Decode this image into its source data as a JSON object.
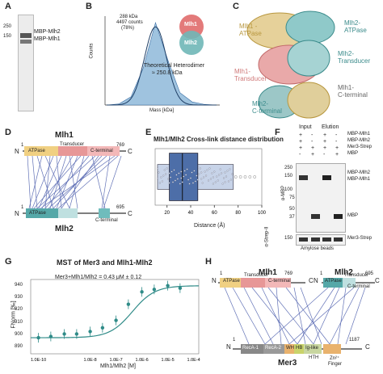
{
  "panels": {
    "a": {
      "letter": "A",
      "marker_250": "250",
      "marker_150": "150",
      "band_label_1": "MBP-Mlh2",
      "band_label_2": "MBP-Mlh1"
    },
    "b": {
      "letter": "B",
      "mass_text": "288 kDa",
      "counts_text": "4497 counts",
      "pct_text": "(78%)",
      "circle_top": "Mlh1",
      "circle_bottom": "Mlh2",
      "theory_line1": "Theoretical Heterodimer",
      "theory_line2": "≈ 250.8 kDa",
      "xlabel": "Mass [kDa]",
      "ylabel": "Counts"
    },
    "c": {
      "letter": "C",
      "mlh1_atpase": "Mlh1 -\nATPase",
      "mlh2_atpase": "Mlh2-\nATPase",
      "mlh2_transducer": "Mlh2-\nTransducer",
      "mlh1_transducer": "Mlh1-\nTransducer",
      "mlh1_cterm": "Mlh1-\nC-terminal",
      "mlh2_cterm": "Mlh2-\nC-terminal",
      "colors": {
        "mlh1": "#d9b96a",
        "mlh2": "#5f9ea0",
        "transducer1": "#e69c9c"
      }
    },
    "d": {
      "letter": "D",
      "title_top": "Mlh1",
      "title_bottom": "Mlh2",
      "n": "N",
      "c": "C",
      "start1": "1",
      "end1": "769",
      "start2": "1",
      "end2": "695",
      "atpase": "ATPase",
      "transducer": "Transducer",
      "cterm": "C-terminal"
    },
    "e": {
      "letter": "E",
      "title": "Mlh1/Mlh2 Cross-link distance distribution",
      "xlabel": "Distance (Å)",
      "ticks": [
        "20",
        "40",
        "60",
        "80",
        "100"
      ]
    },
    "f": {
      "letter": "F",
      "input": "Input",
      "elution": "Elution",
      "row_mlh1": "MBP-Mlh1",
      "row_mlh2": "MBP-Mlh2",
      "row_mer3": "Mer3-Strep",
      "row_mbp": "MBP",
      "mw": [
        "250",
        "150",
        "100",
        "75",
        "50",
        "37",
        "150"
      ],
      "band_mlh2": "MBP-Mlh2",
      "band_mlh1": "MBP-Mlh1",
      "band_mbp": "MBP",
      "band_mer3": "Mer3-Strep",
      "ab_mbp": "α-MBP",
      "ab_strep": "α-Strep-II",
      "beads": "Amylose beads",
      "signs": [
        [
          "+",
          "-",
          "+",
          "-"
        ],
        [
          "+",
          "-",
          "+",
          "-"
        ],
        [
          "+",
          "+",
          "+",
          "+"
        ],
        [
          "-",
          "+",
          "-",
          "+"
        ]
      ]
    },
    "g": {
      "letter": "G",
      "title": "MST of Mer3 and Mlh1-Mlh2",
      "kd": "Mer3+Mlh1/Mlh2 = 0.43 μM ± 0.12",
      "ylabel": "FNorm [‰]",
      "xlabel": "Mlh1/Mlh2 [M]",
      "xticks": [
        "1.0E-10",
        "1.0E-8",
        "1.0E-7",
        "1.0E-6",
        "1.0E-5",
        "1.0E-4"
      ],
      "yticks": [
        "940",
        "930",
        "920",
        "910",
        "900",
        "890"
      ],
      "colors": {
        "mer3": "#e6a23c",
        "mlh1": "#e06666",
        "mlh2": "#3fa3a3"
      }
    },
    "h": {
      "letter": "H",
      "title_mlh1": "Mlh1",
      "title_mlh2": "Mlh2",
      "title_mer3": "Mer3",
      "n": "N",
      "c": "C",
      "start1": "1",
      "end1": "769",
      "start2": "1",
      "end2": "695",
      "start3": "1",
      "end3": "1187",
      "atpase": "ATPase",
      "transducer": "Transducer",
      "cterm": "C-terminal",
      "reca1": "RecA-1",
      "reca2": "RecA-2",
      "wh": "WH",
      "hb": "HB",
      "igl": "Ig-like",
      "hth": "HTH",
      "zn1": "Zn²⁺",
      "zn2": "Finger"
    }
  },
  "chart_data": [
    {
      "type": "line",
      "panel": "B",
      "title": "",
      "xlabel": "Mass [kDa]",
      "ylabel": "Counts",
      "series": [
        {
          "values": [
            0,
            5,
            40,
            180,
            400,
            220,
            60,
            15,
            3,
            0
          ]
        }
      ],
      "peak_kda": 288,
      "counts": 4497
    },
    {
      "type": "box",
      "panel": "E",
      "title": "Mlh1/Mlh2 Cross-link distance distribution",
      "xlabel": "Distance (Å)",
      "xlim": [
        10,
        100
      ],
      "median": 33,
      "q1": 22,
      "q3": 46
    },
    {
      "type": "scatter",
      "panel": "G",
      "title": "MST of Mer3 and Mlh1-Mlh2",
      "xlabel": "Mlh1/Mlh2 [M]",
      "ylabel": "FNorm [‰]",
      "x": [
        "1e-10",
        "3e-10",
        "1e-9",
        "3e-9",
        "1e-8",
        "3e-8",
        "1e-7",
        "3e-7",
        "1e-6",
        "3e-6",
        "1e-5",
        "3e-5"
      ],
      "y": [
        898,
        899,
        901,
        901,
        903,
        906,
        912,
        925,
        935,
        937,
        940,
        938
      ]
    }
  ]
}
